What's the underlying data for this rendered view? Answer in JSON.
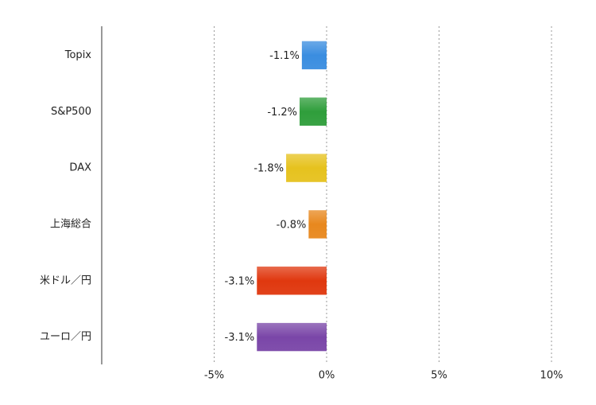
{
  "chart_data": {
    "type": "bar",
    "orientation": "horizontal",
    "categories": [
      "Topix",
      "S&P500",
      "DAX",
      "上海総合",
      "米ドル／円",
      "ユーロ／円"
    ],
    "values": [
      -1.1,
      -1.2,
      -1.8,
      -0.8,
      -3.1,
      -3.1
    ],
    "value_labels": [
      "-1.1%",
      "-1.2%",
      "-1.8%",
      "-0.8%",
      "-3.1%",
      "-3.1%"
    ],
    "colors": [
      "#3a8de0",
      "#2f9e3b",
      "#e6c21e",
      "#e8881e",
      "#e0380f",
      "#7a46a8"
    ],
    "xlim": [
      -10,
      10
    ],
    "xticks": [
      {
        "value": -5,
        "label": "-5%"
      },
      {
        "value": 0,
        "label": "0%"
      },
      {
        "value": 5,
        "label": "5%"
      },
      {
        "value": 10,
        "label": "10%"
      }
    ],
    "grid": true
  }
}
